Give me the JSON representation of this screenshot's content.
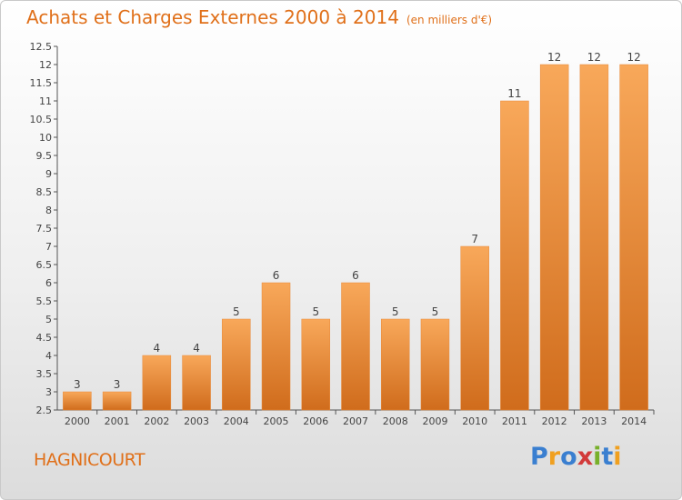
{
  "header": {
    "title": "Achats et Charges Externes 2000 à 2014",
    "unit": "(en milliers d'€)"
  },
  "footer": {
    "place": "HAGNICOURT",
    "brand": "Proxiti"
  },
  "colors": {
    "accent": "#e0701a",
    "bar_top": "#f8a85a",
    "bar_bottom": "#d06c1c"
  },
  "chart_data": {
    "type": "bar",
    "categories": [
      "2000",
      "2001",
      "2002",
      "2003",
      "2004",
      "2005",
      "2006",
      "2007",
      "2008",
      "2009",
      "2010",
      "2011",
      "2012",
      "2013",
      "2014"
    ],
    "values": [
      3,
      3,
      4,
      4,
      5,
      6,
      5,
      6,
      5,
      5,
      7,
      11,
      12,
      12,
      12
    ],
    "data_labels": [
      "3",
      "3",
      "4",
      "4",
      "5",
      "6",
      "5",
      "6",
      "5",
      "5",
      "7",
      "11",
      "12",
      "12",
      "12"
    ],
    "ylim": [
      2.5,
      12.5
    ],
    "yticks": [
      "2.5",
      "3",
      "3.5",
      "4",
      "4.5",
      "5",
      "5.5",
      "6",
      "6.5",
      "7",
      "7.5",
      "8",
      "8.5",
      "9",
      "9.5",
      "10",
      "10.5",
      "11",
      "11.5",
      "12",
      "12.5"
    ],
    "grid": false,
    "legend": "none"
  }
}
